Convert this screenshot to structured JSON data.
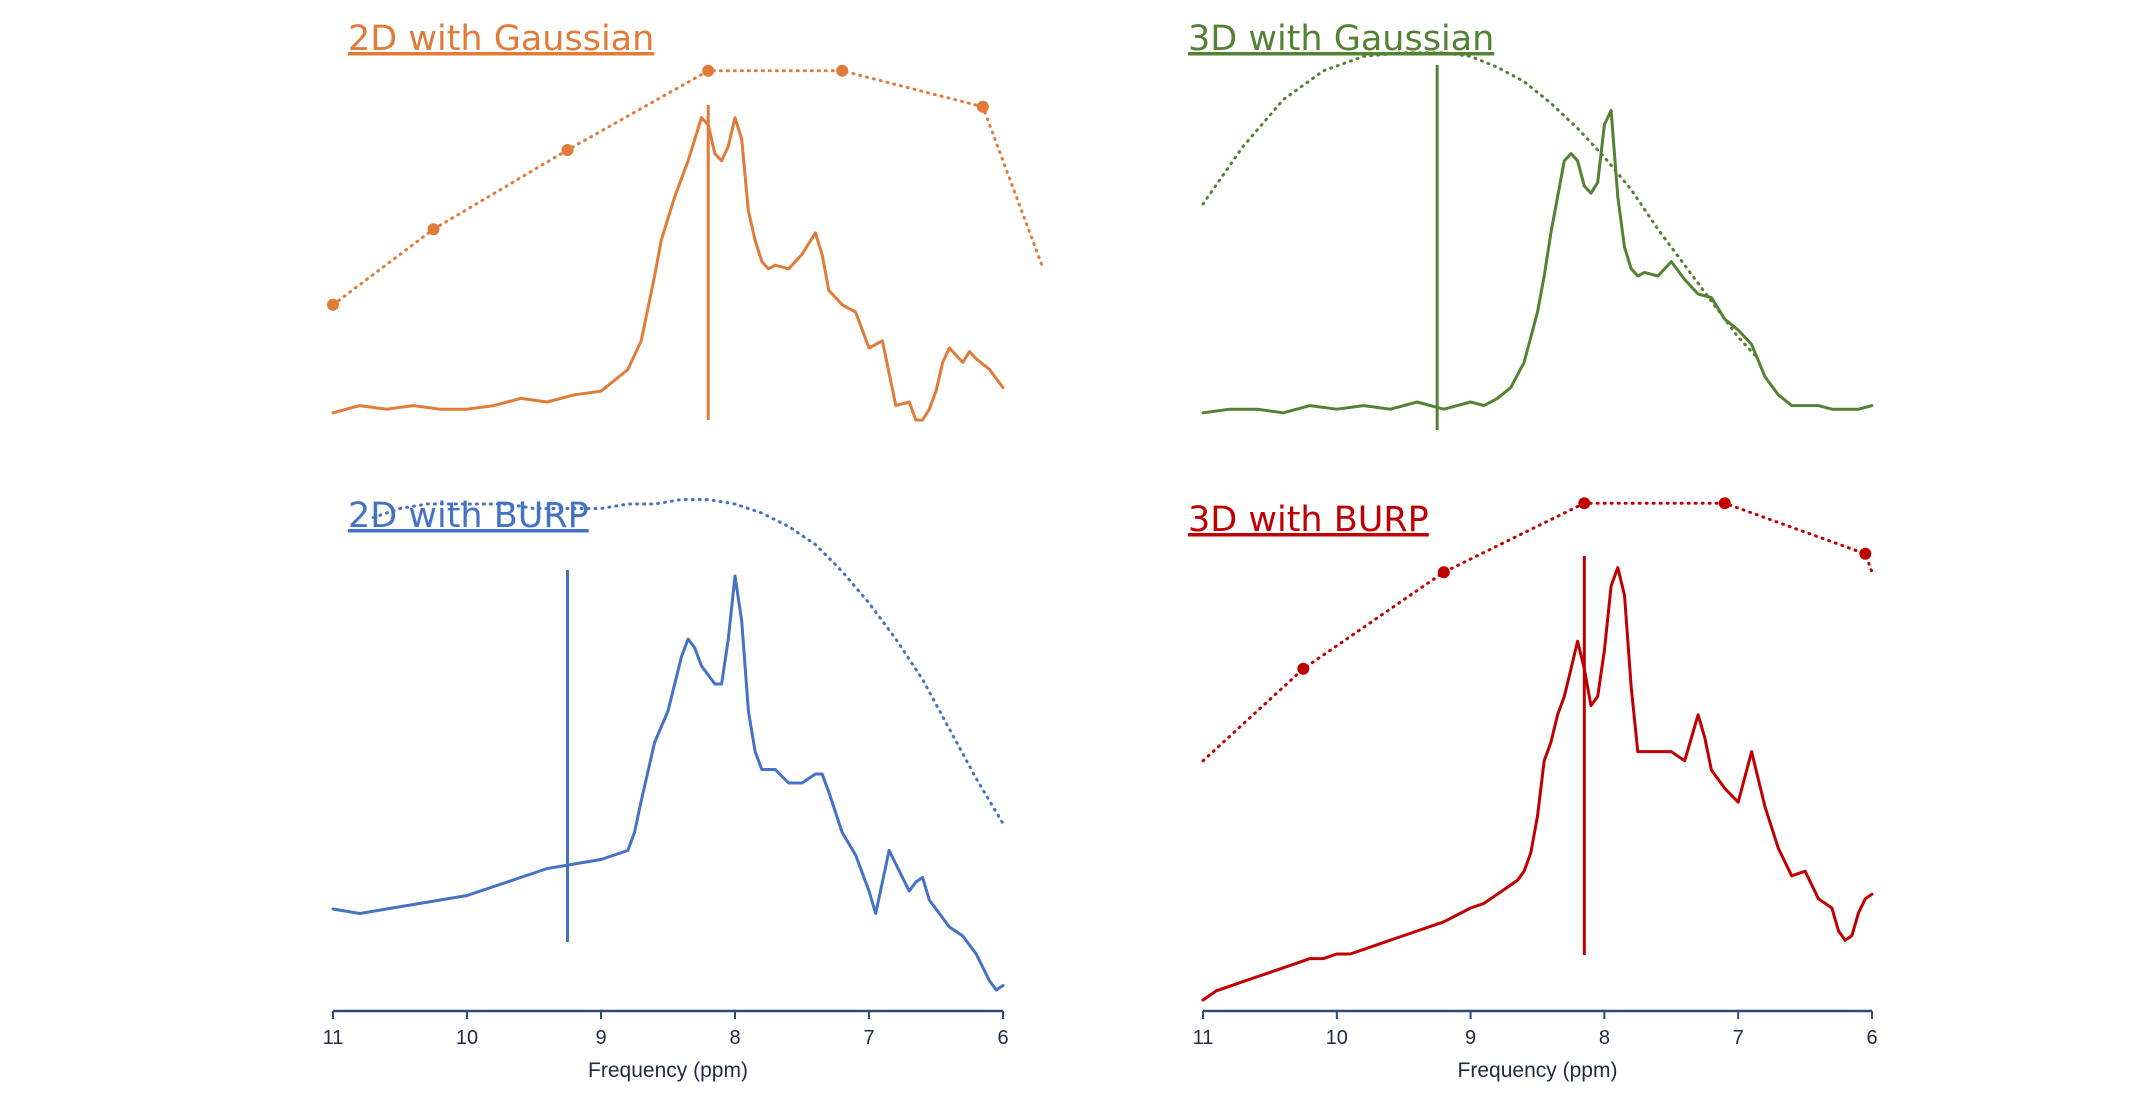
{
  "figure": {
    "x_ticks": [
      "11",
      "10",
      "9",
      "8",
      "7",
      "6"
    ],
    "xlabel": "Frequency (ppm)"
  },
  "chart_data": [
    {
      "type": "line",
      "title": "2D with Gaussian",
      "color": "#E07B39",
      "xlabel": "",
      "xlim": [
        11,
        6
      ],
      "x_reversed": true,
      "excitation_center_ppm": 8.2,
      "series": [
        {
          "style": "solid",
          "x": [
            11.0,
            10.8,
            10.6,
            10.4,
            10.2,
            10.0,
            9.8,
            9.6,
            9.4,
            9.2,
            9.0,
            8.8,
            8.7,
            8.6,
            8.55,
            8.5,
            8.45,
            8.4,
            8.35,
            8.3,
            8.25,
            8.2,
            8.15,
            8.1,
            8.05,
            8.0,
            7.95,
            7.9,
            7.85,
            7.8,
            7.75,
            7.7,
            7.6,
            7.5,
            7.4,
            7.35,
            7.3,
            7.2,
            7.1,
            7.0,
            6.9,
            6.8,
            6.7,
            6.65,
            6.6,
            6.55,
            6.5,
            6.45,
            6.4,
            6.3,
            6.25,
            6.2,
            6.1,
            6.0
          ],
          "y": [
            0.02,
            0.04,
            0.03,
            0.04,
            0.03,
            0.03,
            0.04,
            0.06,
            0.05,
            0.07,
            0.08,
            0.14,
            0.22,
            0.4,
            0.5,
            0.56,
            0.62,
            0.67,
            0.72,
            0.78,
            0.84,
            0.82,
            0.74,
            0.72,
            0.76,
            0.84,
            0.78,
            0.58,
            0.5,
            0.44,
            0.42,
            0.43,
            0.42,
            0.46,
            0.52,
            0.46,
            0.36,
            0.32,
            0.3,
            0.2,
            0.22,
            0.04,
            0.05,
            0.0,
            0.0,
            0.03,
            0.08,
            0.16,
            0.2,
            0.16,
            0.19,
            0.17,
            0.14,
            0.09
          ]
        },
        {
          "style": "dotted",
          "x": [
            11.0,
            10.25,
            9.25,
            8.2,
            7.2,
            6.15,
            5.7
          ],
          "y": [
            0.32,
            0.53,
            0.75,
            0.97,
            0.97,
            0.87,
            0.42
          ],
          "markers": [
            1,
            1,
            1,
            1,
            1,
            1,
            0
          ]
        }
      ]
    },
    {
      "type": "line",
      "title": "3D with Gaussian",
      "color": "#548235",
      "xlabel": "",
      "xlim": [
        11,
        6
      ],
      "x_reversed": true,
      "excitation_center_ppm": 9.25,
      "series": [
        {
          "style": "solid",
          "x": [
            11.0,
            10.8,
            10.6,
            10.4,
            10.2,
            10.0,
            9.8,
            9.6,
            9.4,
            9.2,
            9.0,
            8.9,
            8.8,
            8.7,
            8.6,
            8.5,
            8.45,
            8.4,
            8.35,
            8.3,
            8.25,
            8.2,
            8.15,
            8.1,
            8.05,
            8.0,
            7.95,
            7.9,
            7.85,
            7.8,
            7.75,
            7.7,
            7.6,
            7.5,
            7.4,
            7.3,
            7.2,
            7.1,
            7.0,
            6.9,
            6.8,
            6.7,
            6.6,
            6.5,
            6.4,
            6.3,
            6.2,
            6.1,
            6.0
          ],
          "y": [
            0.02,
            0.03,
            0.03,
            0.02,
            0.04,
            0.03,
            0.04,
            0.03,
            0.05,
            0.03,
            0.05,
            0.04,
            0.06,
            0.09,
            0.16,
            0.3,
            0.4,
            0.52,
            0.62,
            0.72,
            0.74,
            0.72,
            0.65,
            0.63,
            0.66,
            0.82,
            0.86,
            0.62,
            0.48,
            0.42,
            0.4,
            0.41,
            0.4,
            0.44,
            0.39,
            0.35,
            0.34,
            0.28,
            0.25,
            0.21,
            0.12,
            0.07,
            0.04,
            0.04,
            0.04,
            0.03,
            0.03,
            0.03,
            0.04
          ]
        },
        {
          "style": "dotted",
          "x": [
            11.0,
            10.7,
            10.4,
            10.1,
            9.8,
            9.5,
            9.3,
            9.2,
            9.0,
            8.8,
            8.6,
            8.4,
            8.2,
            8.0,
            7.8,
            7.6,
            7.4,
            7.2,
            7.0,
            6.85
          ],
          "y": [
            0.6,
            0.76,
            0.89,
            0.97,
            1.01,
            1.02,
            1.02,
            1.02,
            1.01,
            0.98,
            0.94,
            0.88,
            0.81,
            0.73,
            0.64,
            0.53,
            0.43,
            0.33,
            0.23,
            0.17
          ]
        }
      ]
    },
    {
      "type": "line",
      "title": "2D with BURP",
      "color": "#4472C4",
      "xlabel": "Frequency (ppm)",
      "xlim": [
        11,
        6
      ],
      "x_reversed": true,
      "excitation_center_ppm": 9.25,
      "series": [
        {
          "style": "solid",
          "x": [
            11.0,
            10.8,
            10.6,
            10.4,
            10.2,
            10.0,
            9.8,
            9.6,
            9.4,
            9.2,
            9.0,
            8.9,
            8.8,
            8.75,
            8.7,
            8.6,
            8.5,
            8.45,
            8.4,
            8.35,
            8.3,
            8.25,
            8.2,
            8.15,
            8.1,
            8.05,
            8.0,
            7.95,
            7.9,
            7.85,
            7.8,
            7.75,
            7.7,
            7.6,
            7.5,
            7.4,
            7.35,
            7.3,
            7.2,
            7.1,
            7.0,
            6.95,
            6.9,
            6.85,
            6.8,
            6.7,
            6.65,
            6.6,
            6.55,
            6.5,
            6.4,
            6.3,
            6.2,
            6.15,
            6.1,
            6.05,
            6.0
          ],
          "y": [
            0.18,
            0.17,
            0.18,
            0.19,
            0.2,
            0.21,
            0.23,
            0.25,
            0.27,
            0.28,
            0.29,
            0.3,
            0.31,
            0.35,
            0.42,
            0.55,
            0.62,
            0.68,
            0.74,
            0.78,
            0.76,
            0.72,
            0.7,
            0.68,
            0.68,
            0.78,
            0.92,
            0.82,
            0.62,
            0.53,
            0.49,
            0.49,
            0.49,
            0.46,
            0.46,
            0.48,
            0.48,
            0.44,
            0.35,
            0.3,
            0.22,
            0.17,
            0.24,
            0.31,
            0.28,
            0.22,
            0.24,
            0.25,
            0.2,
            0.18,
            0.14,
            0.12,
            0.08,
            0.05,
            0.02,
            0.0,
            0.01
          ]
        },
        {
          "style": "dotted",
          "x": [
            10.7,
            10.5,
            10.3,
            10.0,
            9.7,
            9.5,
            9.3,
            9.0,
            8.8,
            8.6,
            8.4,
            8.2,
            8.0,
            7.8,
            7.6,
            7.4,
            7.2,
            7.0,
            6.8,
            6.6,
            6.4,
            6.2,
            6.0
          ],
          "y": [
            1.05,
            1.07,
            1.08,
            1.08,
            1.08,
            1.07,
            1.07,
            1.07,
            1.08,
            1.08,
            1.09,
            1.09,
            1.08,
            1.06,
            1.03,
            0.99,
            0.93,
            0.86,
            0.78,
            0.69,
            0.58,
            0.47,
            0.37
          ]
        }
      ]
    },
    {
      "type": "line",
      "title": "3D with BURP",
      "color": "#C00000",
      "xlabel": "Frequency (ppm)",
      "xlim": [
        11,
        6
      ],
      "x_reversed": true,
      "excitation_center_ppm": 8.15,
      "series": [
        {
          "style": "solid",
          "x": [
            11.0,
            10.9,
            10.8,
            10.7,
            10.6,
            10.5,
            10.4,
            10.3,
            10.2,
            10.1,
            10.0,
            9.9,
            9.8,
            9.6,
            9.4,
            9.2,
            9.0,
            8.9,
            8.8,
            8.7,
            8.65,
            8.6,
            8.55,
            8.5,
            8.45,
            8.4,
            8.35,
            8.3,
            8.25,
            8.2,
            8.15,
            8.1,
            8.05,
            8.0,
            7.95,
            7.9,
            7.85,
            7.8,
            7.75,
            7.7,
            7.6,
            7.5,
            7.4,
            7.3,
            7.25,
            7.2,
            7.1,
            7.0,
            6.9,
            6.8,
            6.7,
            6.6,
            6.5,
            6.4,
            6.3,
            6.25,
            6.2,
            6.15,
            6.1,
            6.05,
            6.0
          ],
          "y": [
            0.0,
            0.02,
            0.03,
            0.04,
            0.05,
            0.06,
            0.07,
            0.08,
            0.09,
            0.09,
            0.1,
            0.1,
            0.11,
            0.13,
            0.15,
            0.17,
            0.2,
            0.21,
            0.23,
            0.25,
            0.26,
            0.28,
            0.32,
            0.4,
            0.52,
            0.56,
            0.62,
            0.66,
            0.72,
            0.78,
            0.72,
            0.64,
            0.66,
            0.76,
            0.9,
            0.94,
            0.88,
            0.68,
            0.54,
            0.54,
            0.54,
            0.54,
            0.52,
            0.62,
            0.57,
            0.5,
            0.46,
            0.43,
            0.54,
            0.42,
            0.33,
            0.27,
            0.28,
            0.22,
            0.2,
            0.15,
            0.13,
            0.14,
            0.19,
            0.22,
            0.23
          ]
        },
        {
          "style": "dotted",
          "x": [
            11.0,
            10.25,
            9.2,
            8.15,
            7.1,
            6.05,
            6.0
          ],
          "y": [
            0.52,
            0.72,
            0.93,
            1.08,
            1.08,
            0.97,
            0.93
          ],
          "markers": [
            0,
            1,
            1,
            1,
            1,
            1,
            0
          ]
        }
      ]
    }
  ]
}
